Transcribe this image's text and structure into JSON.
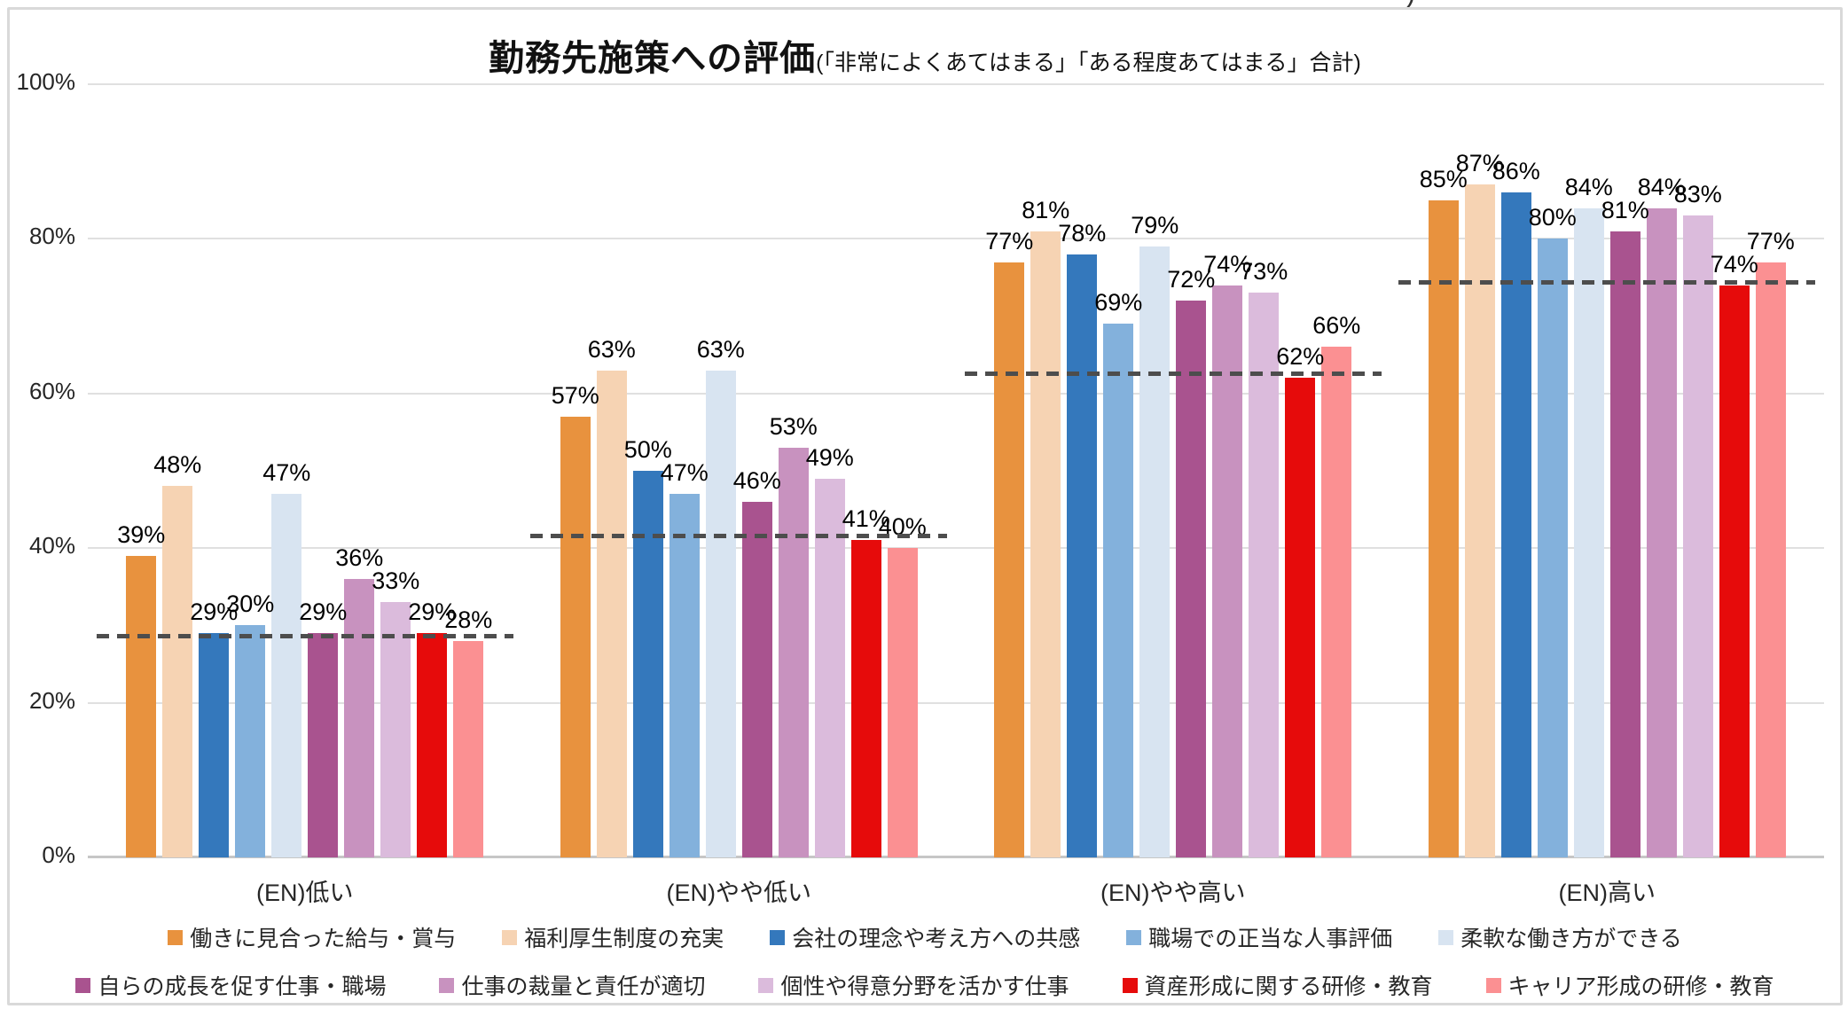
{
  "page": {
    "crop_artifact": ")"
  },
  "title": {
    "main": "勤務先施策への評価",
    "sub": "(「非常によくあてはまる」「ある程度あてはまる」合計)"
  },
  "chart_data": {
    "type": "bar",
    "title": "勤務先施策への評価(「非常によくあてはまる」「ある程度あてはまる」合計)",
    "categories": [
      "(EN)低い",
      "(EN)やや低い",
      "(EN)やや高い",
      "(EN)高い"
    ],
    "series": [
      {
        "name": "働きに見合った給与・賞与",
        "color": "#E8923E",
        "values": [
          39,
          57,
          77,
          85
        ]
      },
      {
        "name": "福利厚生制度の充実",
        "color": "#F6D3B3",
        "values": [
          48,
          63,
          81,
          87
        ]
      },
      {
        "name": "会社の理念や考え方への共感",
        "color": "#3478BC",
        "values": [
          29,
          50,
          78,
          86
        ]
      },
      {
        "name": "職場での正当な人事評価",
        "color": "#83B1DC",
        "values": [
          30,
          47,
          69,
          80
        ]
      },
      {
        "name": "柔軟な働き方ができる",
        "color": "#D8E4F1",
        "values": [
          47,
          63,
          79,
          84
        ]
      },
      {
        "name": "自らの成長を促す仕事・職場",
        "color": "#A9538F",
        "values": [
          29,
          46,
          72,
          81
        ]
      },
      {
        "name": "仕事の裁量と責任が適切",
        "color": "#C892BF",
        "values": [
          36,
          53,
          74,
          84
        ]
      },
      {
        "name": "個性や得意分野を活かす仕事",
        "color": "#DBBBDC",
        "values": [
          33,
          49,
          73,
          83
        ]
      },
      {
        "name": "資産形成に関する研修・教育",
        "color": "#E60B0B",
        "values": [
          29,
          41,
          62,
          74
        ]
      },
      {
        "name": "キャリア形成の研修・教育",
        "color": "#FB9092",
        "values": [
          28,
          40,
          66,
          77
        ]
      }
    ],
    "value_label_suffix": "%",
    "reference_lines": {
      "style": "dashed",
      "color": "#4D4D4D",
      "values_by_category": [
        28.6,
        41.5,
        62.5,
        74.3
      ]
    },
    "ylim": [
      0,
      100
    ],
    "yticks": [
      0,
      20,
      40,
      60,
      80,
      100
    ],
    "ytick_suffix": "%",
    "grid": true,
    "legend_position": "bottom",
    "legend_rows": [
      [
        0,
        1,
        2,
        3,
        4
      ],
      [
        5,
        6,
        7,
        8,
        9
      ]
    ]
  }
}
